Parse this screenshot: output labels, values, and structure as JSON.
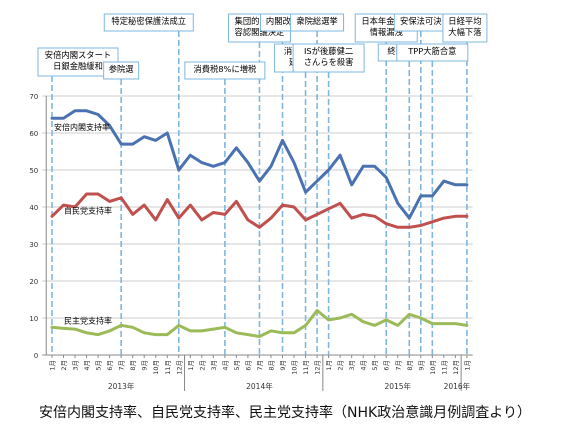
{
  "chart_data": {
    "type": "line",
    "title": "安倍内閣支持率、自民党支持率、民主党支持率（NHK政治意識月例調査より）",
    "xlabel": "",
    "ylabel": "",
    "ylim": [
      0,
      70
    ],
    "yticks": [
      0,
      10,
      20,
      30,
      40,
      50,
      60,
      70
    ],
    "grid": true,
    "x": [
      "2013-01",
      "2013-02",
      "2013-03",
      "2013-04",
      "2013-05",
      "2013-06",
      "2013-07",
      "2013-08",
      "2013-09",
      "2013-10",
      "2013-11",
      "2013-12",
      "2014-01",
      "2014-02",
      "2014-03",
      "2014-04",
      "2014-05",
      "2014-06",
      "2014-07",
      "2014-08",
      "2014-09",
      "2014-10",
      "2014-11",
      "2014-12",
      "2015-01",
      "2015-02",
      "2015-03",
      "2015-04",
      "2015-05",
      "2015-06",
      "2015-07",
      "2015-08",
      "2015-09",
      "2015-10",
      "2015-11",
      "2015-12",
      "2016-01"
    ],
    "x_tick_labels": [
      "1月",
      "2月",
      "3月",
      "4月",
      "5月",
      "6月",
      "7月",
      "8月",
      "9月",
      "10月",
      "11月",
      "12月",
      "1月",
      "2月",
      "3月",
      "4月",
      "5月",
      "6月",
      "7月",
      "8月",
      "9月",
      "10月",
      "11月",
      "12月",
      "1月",
      "2月",
      "3月",
      "4月",
      "5月",
      "6月",
      "7月",
      "8月",
      "9月",
      "10月",
      "11月",
      "12月",
      "1月"
    ],
    "year_labels": [
      {
        "label": "2013年",
        "at": "2013-07"
      },
      {
        "label": "2014年",
        "at": "2014-07"
      },
      {
        "label": "2015年",
        "at": "2015-07"
      },
      {
        "label": "2016年",
        "at": "2016-01"
      }
    ],
    "series": [
      {
        "name": "安倍内閣支持率",
        "color": "#4a72b0",
        "values": [
          64,
          64,
          66,
          66,
          65,
          62,
          57,
          57,
          59,
          58,
          60,
          50,
          54,
          52,
          51,
          52,
          56,
          52,
          47,
          51,
          58,
          52,
          44,
          47,
          50,
          54,
          46,
          51,
          51,
          48,
          41,
          37,
          43,
          43,
          47,
          46,
          46
        ]
      },
      {
        "name": "自民党支持率",
        "color": "#c0504d",
        "values": [
          37.5,
          40.5,
          40,
          43.5,
          43.5,
          41.5,
          42.5,
          38,
          40.5,
          36.5,
          42,
          37,
          40.5,
          36.5,
          38.5,
          38,
          41.5,
          36.5,
          34.5,
          37,
          40.5,
          40,
          36.5,
          38,
          39.5,
          41,
          37,
          38,
          37.5,
          35.5,
          34.5,
          34.5,
          35,
          36,
          37,
          37.5,
          37.5
        ]
      },
      {
        "name": "民主党支持率",
        "color": "#9bbb59",
        "values": [
          7.5,
          7.2,
          7,
          6,
          5.5,
          6.5,
          8,
          7.5,
          6,
          5.5,
          5.5,
          8,
          6.5,
          6.5,
          7,
          7.5,
          6,
          5.5,
          5,
          6.5,
          6,
          6,
          8,
          12,
          9.5,
          10,
          11,
          9,
          8,
          9.5,
          8,
          11,
          10,
          8.5,
          8.5,
          8.5,
          8
        ]
      }
    ],
    "annotations": [
      {
        "lines": [
          "安倍内閣スタート",
          "日銀金融緩和"
        ],
        "at": "2013-01"
      },
      {
        "lines": [
          "参院選"
        ],
        "at": "2013-07"
      },
      {
        "lines": [
          "特定秘密保護法成立"
        ],
        "at": "2013-12"
      },
      {
        "lines": [
          "消費税8%に増税"
        ],
        "at": "2014-04"
      },
      {
        "lines": [
          "集団的自衛権",
          "容認閣議決定"
        ],
        "at": "2014-07"
      },
      {
        "lines": [
          "内閣改造"
        ],
        "at": "2014-09"
      },
      {
        "lines": [
          "消費税10%",
          "延期決定"
        ],
        "at": "2014-11"
      },
      {
        "lines": [
          "衆院総選挙"
        ],
        "at": "2014-12"
      },
      {
        "lines": [
          "ISが後藤健二",
          "さんらを殺害"
        ],
        "at": "2015-01"
      },
      {
        "lines": [
          "日本年金機構",
          "情報漏洩"
        ],
        "at": "2015-06"
      },
      {
        "lines": [
          "終戦70周年"
        ],
        "at": "2015-08"
      },
      {
        "lines": [
          "安保法可決"
        ],
        "at": "2015-09"
      },
      {
        "lines": [
          "TPP大筋合意"
        ],
        "at": "2015-10"
      },
      {
        "lines": [
          "日経平均",
          "大幅下落"
        ],
        "at": "2016-01"
      }
    ]
  }
}
